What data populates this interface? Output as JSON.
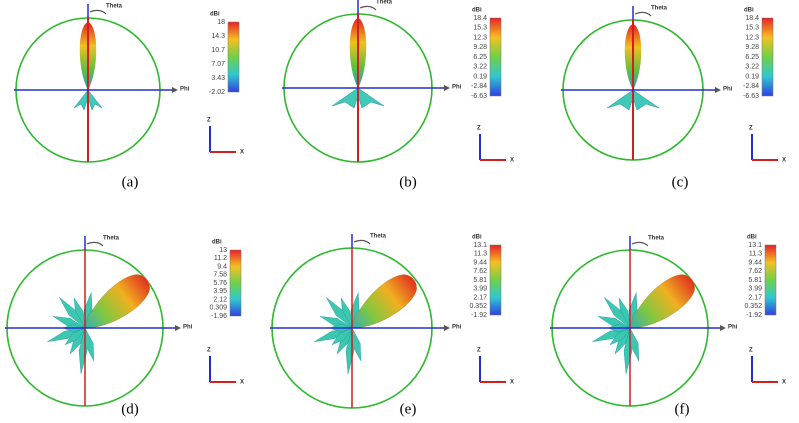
{
  "panels": [
    {
      "caption": "(a)",
      "theta": "Theta",
      "phi": "Phi",
      "unit": "dBi",
      "axis_z": "Z",
      "axis_x": "X",
      "colorbar_ticks": [
        "18",
        "14.3",
        "10.7",
        "7.07",
        "3.43",
        "-2.02"
      ]
    },
    {
      "caption": "(b)",
      "theta": "Theta",
      "phi": "Phi",
      "unit": "dBi",
      "axis_z": "Z",
      "axis_x": "X",
      "colorbar_ticks": [
        "18.4",
        "15.3",
        "12.3",
        "9.28",
        "6.25",
        "3.22",
        "0.19",
        "-2.84",
        "-6.63"
      ]
    },
    {
      "caption": "(c)",
      "theta": "Theta",
      "phi": "Phi",
      "unit": "dBi",
      "axis_z": "Z",
      "axis_x": "X",
      "colorbar_ticks": [
        "18.4",
        "15.3",
        "12.3",
        "9.28",
        "6.25",
        "3.22",
        "0.19",
        "-2.84",
        "-6.63"
      ]
    },
    {
      "caption": "(d)",
      "theta": "Theta",
      "phi": "Phi",
      "unit": "dBi",
      "axis_z": "Z",
      "axis_x": "X",
      "colorbar_ticks": [
        "13",
        "11.2",
        "9.4",
        "7.58",
        "5.76",
        "3.95",
        "2.12",
        "0.309",
        "-1.96"
      ]
    },
    {
      "caption": "(e)",
      "theta": "Theta",
      "phi": "Phi",
      "unit": "dBi",
      "axis_z": "Z",
      "axis_x": "X",
      "colorbar_ticks": [
        "13.1",
        "11.3",
        "9.44",
        "7.62",
        "5.81",
        "3.99",
        "2.17",
        "0.352",
        "-1.92"
      ]
    },
    {
      "caption": "(f)",
      "theta": "Theta",
      "phi": "Phi",
      "unit": "dBi",
      "axis_z": "Z",
      "axis_x": "X",
      "colorbar_ticks": [
        "13.1",
        "11.3",
        "9.44",
        "7.62",
        "5.81",
        "3.99",
        "2.17",
        "0.352",
        "-1.92"
      ]
    }
  ]
}
